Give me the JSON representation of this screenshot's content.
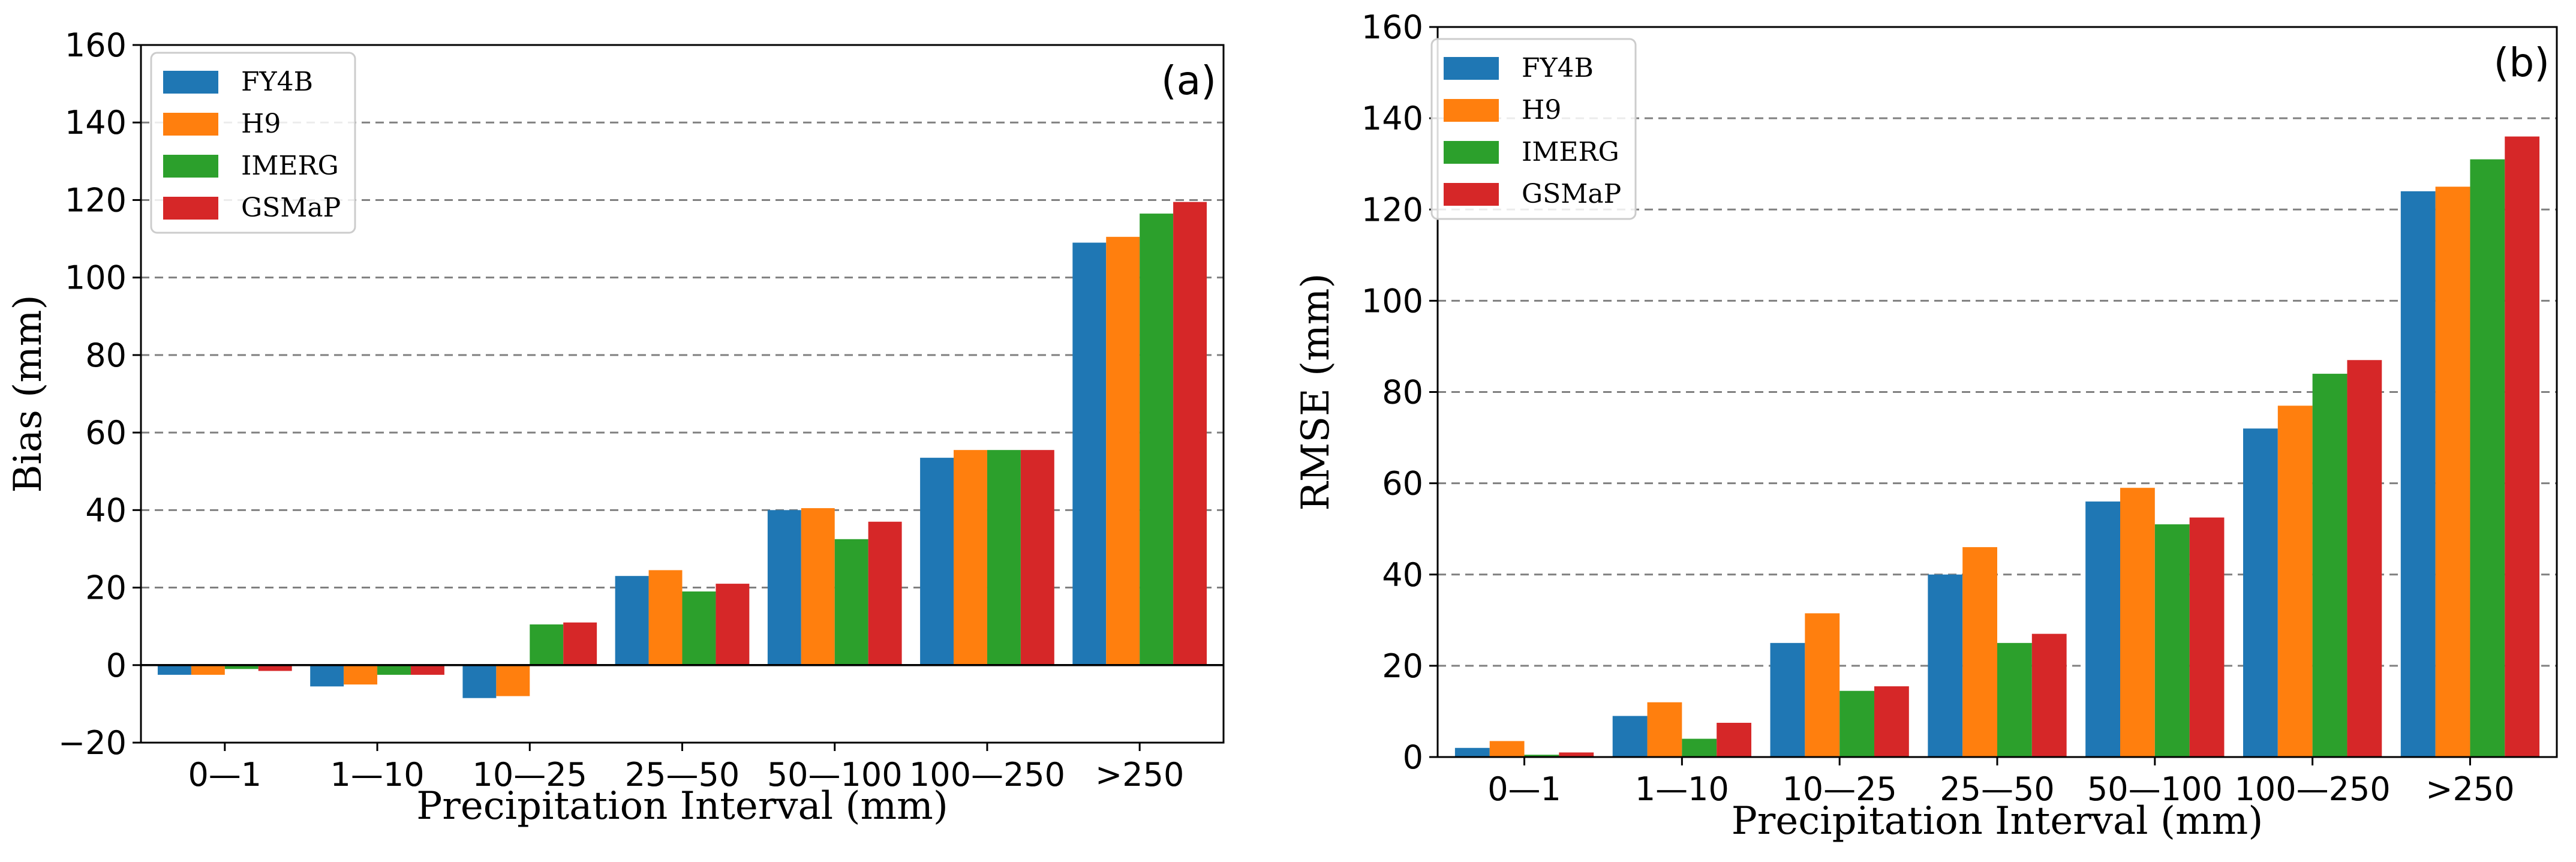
{
  "chart_data": [
    {
      "type": "bar",
      "panel_label": "(a)",
      "xlabel": "Precipitation Interval (mm)",
      "ylabel": "Bias (mm)",
      "ylim": [
        -20,
        160
      ],
      "yticks": [
        -20,
        0,
        20,
        40,
        60,
        80,
        100,
        120,
        140,
        160
      ],
      "ytick_labels": [
        "−20",
        "0",
        "20",
        "40",
        "60",
        "80",
        "100",
        "120",
        "140",
        "160"
      ],
      "grid": true,
      "zero_line": true,
      "legend_position": "top-left",
      "categories": [
        "0—1",
        "1—10",
        "10—25",
        "25—50",
        "50—100",
        "100—250",
        ">250"
      ],
      "series": [
        {
          "name": "FY4B",
          "color": "#1f77b4",
          "values": [
            -2.5,
            -5.5,
            -8.5,
            23,
            40,
            53.5,
            109
          ]
        },
        {
          "name": "H9",
          "color": "#ff7f0e",
          "values": [
            -2.5,
            -5,
            -8,
            24.5,
            40.5,
            55.5,
            110.5
          ]
        },
        {
          "name": "IMERG",
          "color": "#2ca02c",
          "values": [
            -1,
            -2.5,
            10.5,
            19,
            32.5,
            55.5,
            116.5
          ]
        },
        {
          "name": "GSMaP",
          "color": "#d62728",
          "values": [
            -1.5,
            -2.5,
            11,
            21,
            37,
            55.5,
            119.5
          ]
        }
      ]
    },
    {
      "type": "bar",
      "panel_label": "(b)",
      "xlabel": "Precipitation Interval (mm)",
      "ylabel": "RMSE (mm)",
      "ylim": [
        0,
        160
      ],
      "yticks": [
        0,
        20,
        40,
        60,
        80,
        100,
        120,
        140,
        160
      ],
      "ytick_labels": [
        "0",
        "20",
        "40",
        "60",
        "80",
        "100",
        "120",
        "140",
        "160"
      ],
      "grid": true,
      "zero_line": false,
      "legend_position": "top-left",
      "categories": [
        "0—1",
        "1—10",
        "10—25",
        "25—50",
        "50—100",
        "100—250",
        ">250"
      ],
      "series": [
        {
          "name": "FY4B",
          "color": "#1f77b4",
          "values": [
            2,
            9,
            25,
            40,
            56,
            72,
            124
          ]
        },
        {
          "name": "H9",
          "color": "#ff7f0e",
          "values": [
            3.5,
            12,
            31.5,
            46,
            59,
            77,
            125
          ]
        },
        {
          "name": "IMERG",
          "color": "#2ca02c",
          "values": [
            0.5,
            4,
            14.5,
            25,
            51,
            84,
            131
          ]
        },
        {
          "name": "GSMaP",
          "color": "#d62728",
          "values": [
            1,
            7.5,
            15.5,
            27,
            52.5,
            87,
            136
          ]
        }
      ]
    }
  ]
}
